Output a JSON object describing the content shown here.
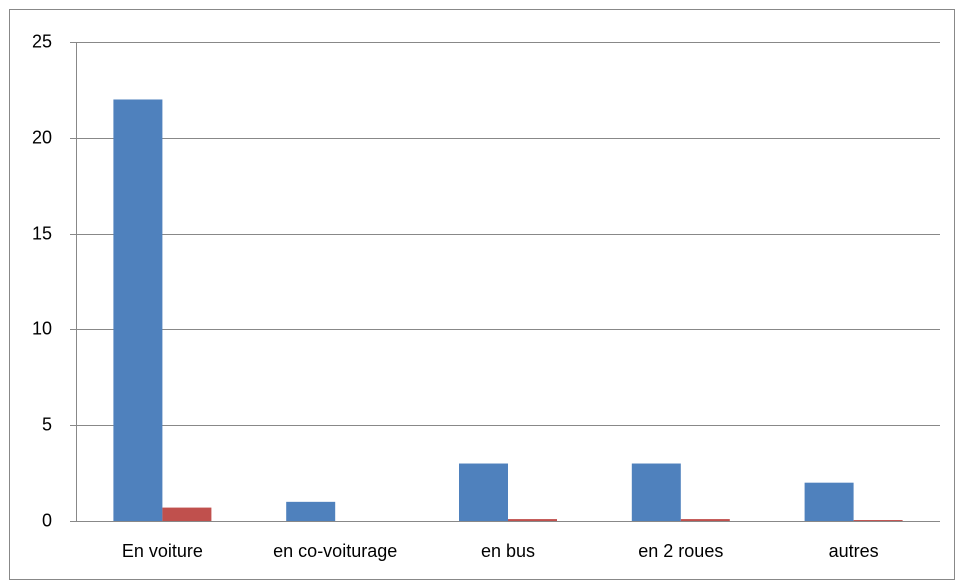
{
  "chart_data": {
    "type": "bar",
    "categories": [
      "En voiture",
      "en co-voiturage",
      "en bus",
      "en 2 roues",
      "autres"
    ],
    "series": [
      {
        "color": "#4f81bd",
        "values": [
          22,
          1,
          3,
          3,
          2
        ]
      },
      {
        "color": "#c0504d",
        "values": [
          0.7,
          0,
          0.1,
          0.1,
          0.05
        ]
      }
    ],
    "ylim": [
      0,
      25
    ],
    "yticks": [
      0,
      5,
      10,
      15,
      20,
      25
    ],
    "grid": true,
    "legend": false
  }
}
